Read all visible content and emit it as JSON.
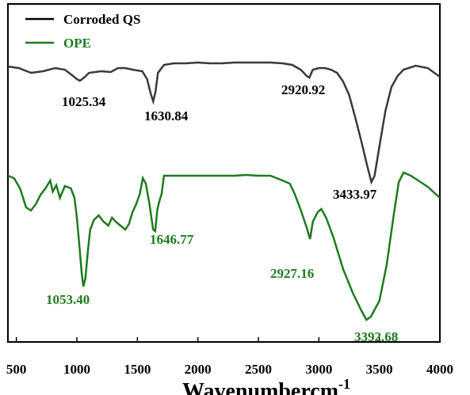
{
  "chart_data": {
    "type": "line",
    "title": "",
    "xlabel": "Wavenumbercm",
    "xlabel_superscript": "-1",
    "ylabel": "",
    "xlim": [
      430,
      4000
    ],
    "x_ticks": [
      500,
      1000,
      1500,
      2000,
      2500,
      3000,
      3500,
      4000
    ],
    "grid": false,
    "legend_position": "top-left",
    "colors": {
      "corroded": "#3a3a3a",
      "ope": "#1e7b1e"
    },
    "series": [
      {
        "name": "Corroded QS",
        "color": "#3a3a3a",
        "points": [
          [
            430,
            84
          ],
          [
            520,
            86
          ],
          [
            620,
            92
          ],
          [
            720,
            90
          ],
          [
            820,
            86
          ],
          [
            900,
            88
          ],
          [
            960,
            95
          ],
          [
            1000,
            100
          ],
          [
            1025,
            102
          ],
          [
            1060,
            98
          ],
          [
            1100,
            92
          ],
          [
            1200,
            90
          ],
          [
            1280,
            91
          ],
          [
            1340,
            86
          ],
          [
            1400,
            86
          ],
          [
            1460,
            88
          ],
          [
            1540,
            90
          ],
          [
            1580,
            100
          ],
          [
            1610,
            118
          ],
          [
            1631,
            128
          ],
          [
            1650,
            116
          ],
          [
            1670,
            92
          ],
          [
            1720,
            82
          ],
          [
            1800,
            80
          ],
          [
            1900,
            80
          ],
          [
            2000,
            79
          ],
          [
            2100,
            80
          ],
          [
            2200,
            80
          ],
          [
            2300,
            79
          ],
          [
            2400,
            79
          ],
          [
            2500,
            79
          ],
          [
            2600,
            79
          ],
          [
            2700,
            80
          ],
          [
            2780,
            82
          ],
          [
            2850,
            88
          ],
          [
            2900,
            96
          ],
          [
            2921,
            98
          ],
          [
            2950,
            88
          ],
          [
            3000,
            86
          ],
          [
            3050,
            86
          ],
          [
            3100,
            88
          ],
          [
            3150,
            92
          ],
          [
            3200,
            103
          ],
          [
            3250,
            120
          ],
          [
            3300,
            148
          ],
          [
            3350,
            178
          ],
          [
            3400,
            210
          ],
          [
            3434,
            230
          ],
          [
            3460,
            222
          ],
          [
            3500,
            185
          ],
          [
            3550,
            140
          ],
          [
            3600,
            110
          ],
          [
            3650,
            96
          ],
          [
            3700,
            88
          ],
          [
            3800,
            83
          ],
          [
            3900,
            86
          ],
          [
            4000,
            97
          ]
        ]
      },
      {
        "name": "OPE",
        "color": "#1e7b1e",
        "points": [
          [
            430,
            222
          ],
          [
            480,
            225
          ],
          [
            530,
            238
          ],
          [
            580,
            262
          ],
          [
            620,
            266
          ],
          [
            660,
            258
          ],
          [
            700,
            246
          ],
          [
            740,
            238
          ],
          [
            780,
            228
          ],
          [
            800,
            242
          ],
          [
            830,
            234
          ],
          [
            860,
            250
          ],
          [
            900,
            235
          ],
          [
            950,
            238
          ],
          [
            980,
            250
          ],
          [
            1000,
            275
          ],
          [
            1020,
            310
          ],
          [
            1040,
            345
          ],
          [
            1053,
            362
          ],
          [
            1070,
            352
          ],
          [
            1090,
            318
          ],
          [
            1110,
            290
          ],
          [
            1140,
            278
          ],
          [
            1180,
            272
          ],
          [
            1220,
            280
          ],
          [
            1260,
            285
          ],
          [
            1290,
            275
          ],
          [
            1320,
            280
          ],
          [
            1360,
            285
          ],
          [
            1400,
            290
          ],
          [
            1430,
            283
          ],
          [
            1460,
            268
          ],
          [
            1490,
            258
          ],
          [
            1520,
            245
          ],
          [
            1545,
            225
          ],
          [
            1570,
            232
          ],
          [
            1600,
            258
          ],
          [
            1630,
            290
          ],
          [
            1647,
            292
          ],
          [
            1665,
            265
          ],
          [
            1680,
            255
          ],
          [
            1700,
            245
          ],
          [
            1720,
            222
          ],
          [
            1800,
            222
          ],
          [
            1900,
            222
          ],
          [
            2000,
            222
          ],
          [
            2100,
            222
          ],
          [
            2200,
            222
          ],
          [
            2300,
            222
          ],
          [
            2400,
            221
          ],
          [
            2500,
            222
          ],
          [
            2600,
            222
          ],
          [
            2700,
            228
          ],
          [
            2760,
            232
          ],
          [
            2800,
            245
          ],
          [
            2850,
            265
          ],
          [
            2900,
            288
          ],
          [
            2927,
            302
          ],
          [
            2950,
            280
          ],
          [
            2990,
            268
          ],
          [
            3020,
            264
          ],
          [
            3060,
            275
          ],
          [
            3120,
            300
          ],
          [
            3200,
            340
          ],
          [
            3280,
            370
          ],
          [
            3350,
            392
          ],
          [
            3393,
            404
          ],
          [
            3430,
            400
          ],
          [
            3500,
            380
          ],
          [
            3560,
            335
          ],
          [
            3620,
            270
          ],
          [
            3660,
            230
          ],
          [
            3700,
            218
          ],
          [
            3760,
            222
          ],
          [
            3820,
            228
          ],
          [
            3900,
            236
          ],
          [
            4000,
            250
          ]
        ]
      }
    ],
    "annotations": [
      {
        "text": "1025.34",
        "series": "Corroded QS"
      },
      {
        "text": "1630.84",
        "series": "Corroded QS"
      },
      {
        "text": "2920.92",
        "series": "Corroded QS"
      },
      {
        "text": "3433.97",
        "series": "Corroded QS"
      },
      {
        "text": "1646.77",
        "series": "OPE"
      },
      {
        "text": "1053.40",
        "series": "OPE"
      },
      {
        "text": "2927.16",
        "series": "OPE"
      },
      {
        "text": "3392.68",
        "series": "OPE"
      }
    ]
  }
}
